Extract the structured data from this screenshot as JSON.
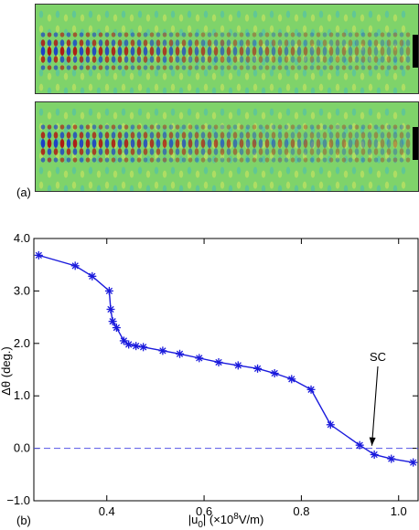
{
  "panel_a": {
    "label": "(a)",
    "colors": {
      "background": "#7fd36a",
      "band_red": "#b01010",
      "band_blue": "#1a3cc8",
      "ripple_yellow": "#e8e85a",
      "ripple_cyan": "#3fb9c9",
      "aperture": "#000000"
    }
  },
  "chart_data": {
    "type": "line",
    "panel_label": "(b)",
    "xlabel_prefix": "|u",
    "xlabel_sub": "0",
    "xlabel_mid": "| (×10",
    "xlabel_sup": "8",
    "xlabel_suffix": "V/m)",
    "ylabel": "Δθ (deg.)",
    "xlim": [
      0.25,
      1.04
    ],
    "ylim": [
      -1.0,
      4.0
    ],
    "x_ticks": [
      0.4,
      0.6,
      0.8,
      1.0
    ],
    "x_tick_labels": [
      "0.4",
      "0.6",
      "0.8",
      "1.0"
    ],
    "y_ticks": [
      -1.0,
      0.0,
      1.0,
      2.0,
      3.0,
      4.0
    ],
    "y_tick_labels": [
      "−1.0",
      "0.0",
      "1.0",
      "2.0",
      "3.0",
      "4.0"
    ],
    "grid": false,
    "series": [
      {
        "color": "#1a1adc",
        "marker": "asterisk",
        "x": [
          0.26,
          0.335,
          0.37,
          0.405,
          0.408,
          0.412,
          0.42,
          0.435,
          0.445,
          0.46,
          0.475,
          0.515,
          0.55,
          0.59,
          0.63,
          0.67,
          0.71,
          0.745,
          0.78,
          0.82,
          0.86,
          0.92,
          0.95,
          0.985,
          1.03
        ],
        "y": [
          3.68,
          3.48,
          3.28,
          3.0,
          2.65,
          2.42,
          2.3,
          2.05,
          1.98,
          1.95,
          1.93,
          1.86,
          1.8,
          1.72,
          1.64,
          1.58,
          1.52,
          1.43,
          1.32,
          1.12,
          0.45,
          0.06,
          -0.12,
          -0.2,
          -0.27
        ]
      }
    ],
    "reference_line": {
      "y": 0.0,
      "style": "dashed",
      "color": "#5555e6"
    },
    "annotation": {
      "text": "SC",
      "points_to": [
        0.945,
        -0.02
      ]
    }
  }
}
